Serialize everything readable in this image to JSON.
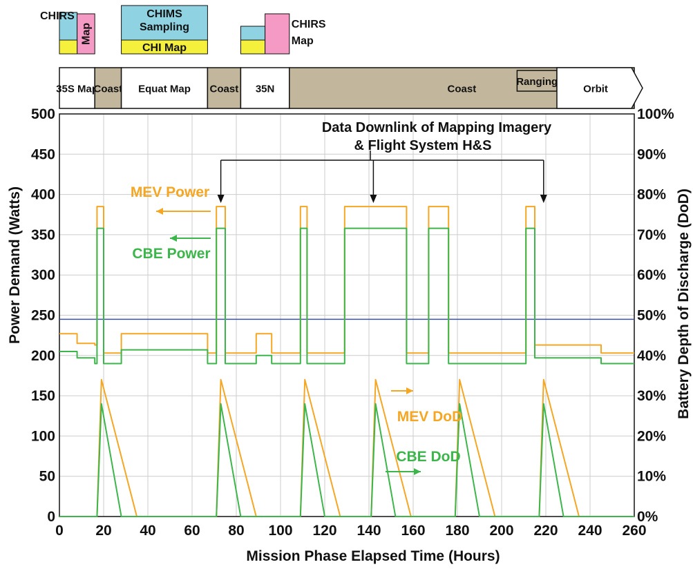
{
  "colors": {
    "mev": "#f5a623",
    "cbe": "#3cb54a",
    "limit": "#3b4fa8",
    "coast": "#c2b79c",
    "cyan": "#8fd3e3",
    "yellow": "#f4f03c",
    "pink": "#f49ac4",
    "grid": "#cccccc"
  },
  "phases": [
    {
      "label": "35S Map",
      "start": 0,
      "end": 16,
      "kind": "map"
    },
    {
      "label": "Coast",
      "start": 16,
      "end": 28,
      "kind": "coast"
    },
    {
      "label": "Equat Map",
      "start": 28,
      "end": 67,
      "kind": "map"
    },
    {
      "label": "Coast",
      "start": 67,
      "end": 82,
      "kind": "coast"
    },
    {
      "label": "35N",
      "start": 82,
      "end": 104,
      "kind": "map"
    },
    {
      "label": "Coast",
      "start": 104,
      "end": 260,
      "kind": "coast"
    },
    {
      "label": "Ranging",
      "start": 207,
      "end": 225,
      "kind": "coast"
    },
    {
      "label": "Orbit",
      "start": 225,
      "end": 260,
      "kind": "orbit"
    }
  ],
  "instruments": [
    {
      "label": "CHIRS",
      "color": "cyan",
      "start": 0,
      "end": 8,
      "y0": 0,
      "y1": 2
    },
    {
      "label": "Map",
      "color": "pink",
      "start": 8,
      "end": 16,
      "y0": 0,
      "y1": 3,
      "vertical": true
    },
    {
      "label": "",
      "color": "yellow",
      "start": 0,
      "end": 8,
      "y0": 2,
      "y1": 3
    },
    {
      "label": "CHIMS Sampling",
      "color": "cyan",
      "start": 28,
      "end": 67,
      "y0": 0,
      "y1": 2
    },
    {
      "label": "CHI Map",
      "color": "yellow",
      "start": 28,
      "end": 67,
      "y0": 2,
      "y1": 3
    },
    {
      "label": "",
      "color": "cyan",
      "start": 82,
      "end": 93,
      "y0": 1,
      "y1": 2
    },
    {
      "label": "",
      "color": "yellow",
      "start": 82,
      "end": 93,
      "y0": 2,
      "y1": 3
    },
    {
      "label": "",
      "color": "pink",
      "start": 93,
      "end": 104,
      "y0": 0,
      "y1": 3
    }
  ],
  "side_notes": [
    {
      "text": "CHIRS",
      "at": 104,
      "row": 0
    },
    {
      "text": "Map",
      "at": 104,
      "row": 1
    }
  ],
  "annotations": {
    "downlink_line1": "Data Downlink of Mapping Imagery",
    "downlink_line2": "& Flight System H&S",
    "downlink_arrows": [
      73,
      142,
      219
    ],
    "mev_power": "MEV Power",
    "cbe_power": "CBE Power",
    "mev_dod": "MEV DoD",
    "cbe_dod": "CBE DoD"
  },
  "chart_data": {
    "type": "line",
    "xlabel": "Mission Phase Elapsed Time (Hours)",
    "ylabel": "Power Demand (Watts)",
    "y2label": "Battery Depth of Discharge (DoD)",
    "xlim": [
      0,
      260
    ],
    "ylim": [
      0,
      500
    ],
    "y2lim": [
      0,
      100
    ],
    "xticks": [
      0,
      20,
      40,
      60,
      80,
      100,
      120,
      140,
      160,
      180,
      200,
      220,
      240,
      260
    ],
    "yticks": [
      0,
      50,
      100,
      150,
      200,
      250,
      300,
      350,
      400,
      450,
      500
    ],
    "y2ticks": [
      "0%",
      "10%",
      "20%",
      "30%",
      "40%",
      "50%",
      "60%",
      "70%",
      "80%",
      "90%",
      "100%"
    ],
    "grid": true,
    "limit_line": 245,
    "series": [
      {
        "key": "mev_power",
        "axis": "left",
        "x": [
          0,
          8,
          8,
          16,
          16,
          17,
          17,
          20,
          20,
          28,
          28,
          67,
          67,
          71,
          71,
          75,
          75,
          82,
          82,
          89,
          89,
          96,
          96,
          109,
          109,
          112,
          112,
          127,
          127,
          129,
          129,
          157,
          157,
          161,
          161,
          167,
          167,
          176,
          176,
          181,
          181,
          211,
          211,
          215,
          215,
          245,
          245,
          260
        ],
        "y": [
          227,
          227,
          215,
          215,
          213,
          213,
          385,
          385,
          203,
          203,
          227,
          227,
          203,
          203,
          385,
          385,
          203,
          203,
          203,
          203,
          227,
          227,
          203,
          203,
          385,
          385,
          203,
          203,
          203,
          203,
          385,
          385,
          203,
          203,
          203,
          203,
          385,
          385,
          203,
          203,
          203,
          203,
          385,
          385,
          213,
          213,
          203,
          203
        ]
      },
      {
        "key": "cbe_power",
        "axis": "left",
        "x": [
          0,
          8,
          8,
          16,
          16,
          17,
          17,
          20,
          20,
          28,
          28,
          67,
          67,
          71,
          71,
          75,
          75,
          82,
          82,
          89,
          89,
          96,
          96,
          109,
          109,
          112,
          112,
          127,
          127,
          129,
          129,
          157,
          157,
          161,
          161,
          167,
          167,
          176,
          176,
          181,
          181,
          211,
          211,
          215,
          215,
          245,
          245,
          260
        ],
        "y": [
          205,
          205,
          197,
          197,
          190,
          190,
          358,
          358,
          190,
          190,
          207,
          207,
          190,
          190,
          358,
          358,
          190,
          190,
          190,
          190,
          200,
          200,
          190,
          190,
          358,
          358,
          190,
          190,
          190,
          190,
          358,
          358,
          190,
          190,
          190,
          190,
          358,
          358,
          190,
          190,
          190,
          190,
          358,
          358,
          197,
          197,
          190,
          190
        ]
      },
      {
        "key": "mev_dod",
        "axis": "right",
        "x": [
          0,
          17,
          19,
          35,
          71,
          73,
          89,
          109,
          111,
          127,
          141,
          143,
          159,
          179,
          181,
          197,
          217,
          219,
          235,
          260
        ],
        "y": [
          0,
          0,
          34,
          0,
          0,
          34,
          0,
          0,
          34,
          0,
          0,
          34,
          0,
          0,
          34,
          0,
          0,
          34,
          0,
          0
        ]
      },
      {
        "key": "cbe_dod",
        "axis": "right",
        "x": [
          0,
          17,
          19,
          28,
          71,
          73,
          82,
          109,
          111,
          120,
          141,
          143,
          152,
          179,
          181,
          190,
          217,
          219,
          228,
          260
        ],
        "y": [
          0,
          0,
          28,
          0,
          0,
          28,
          0,
          0,
          28,
          0,
          0,
          28,
          0,
          0,
          28,
          0,
          0,
          28,
          0,
          0
        ]
      }
    ]
  }
}
